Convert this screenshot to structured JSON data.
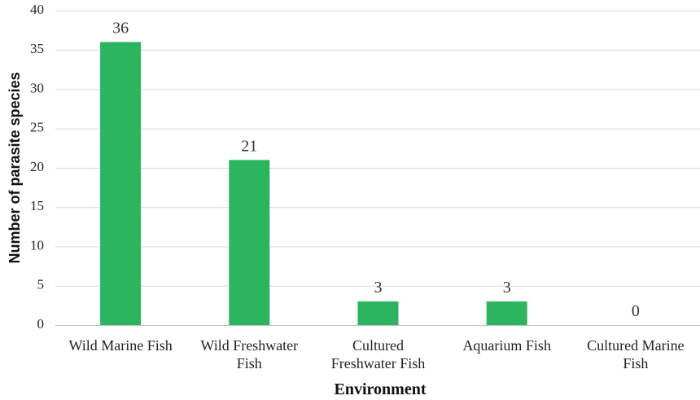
{
  "chart_data": {
    "type": "bar",
    "title": "",
    "xlabel": "Environment",
    "ylabel": "Number of parasite species",
    "ylim": [
      0,
      40
    ],
    "yticks": [
      0,
      5,
      10,
      15,
      20,
      25,
      30,
      35,
      40
    ],
    "grid": true,
    "legend": "none",
    "categories": [
      [
        "Wild Marine Fish"
      ],
      [
        "Wild Freshwater",
        "Fish"
      ],
      [
        "Cultured",
        "Freshwater Fish"
      ],
      [
        "Aquarium Fish"
      ],
      [
        "Cultured Marine",
        "Fish"
      ]
    ],
    "series": [
      {
        "values": [
          36,
          21,
          3,
          3,
          0
        ],
        "color": "#2ab55e"
      }
    ]
  }
}
